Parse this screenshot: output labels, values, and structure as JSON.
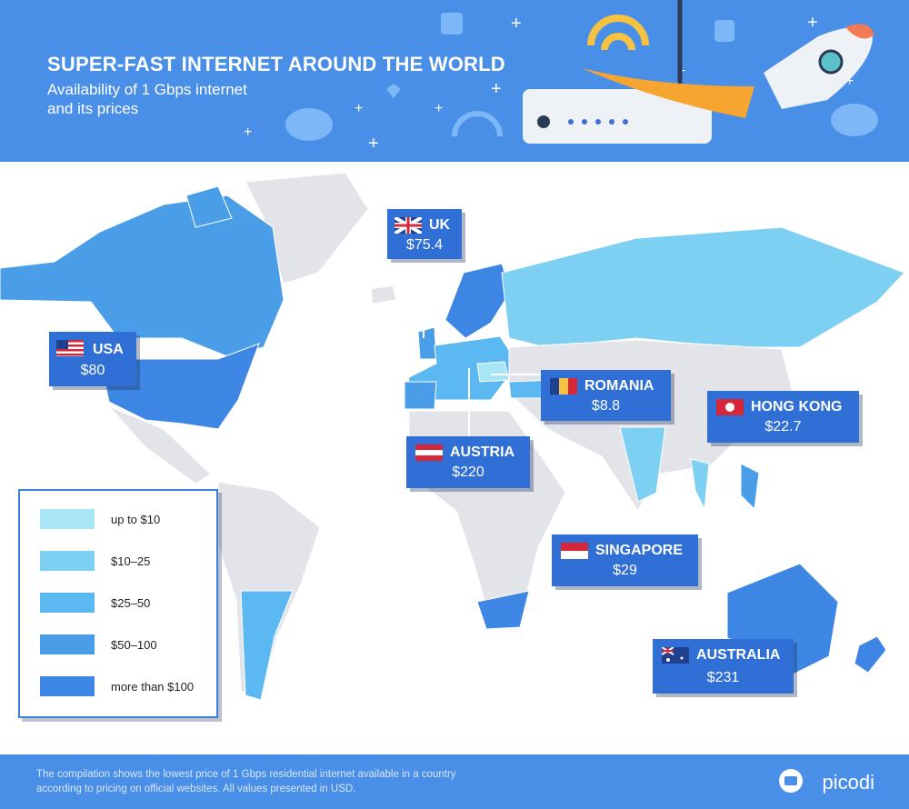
{
  "header": {
    "title": "SUPER-FAST INTERNET AROUND THE WORLD",
    "subtitle_lines": [
      "Availability of 1 Gbps internet",
      "and its prices"
    ]
  },
  "legend": {
    "items": [
      {
        "label": "up to $10",
        "color": "#a8e6f5"
      },
      {
        "label": "$10–25",
        "color": "#7ed0f3"
      },
      {
        "label": "$25–50",
        "color": "#5cb8f0"
      },
      {
        "label": "$50–100",
        "color": "#4a9ee8"
      },
      {
        "label": "more than $100",
        "color": "#3d86e3"
      }
    ]
  },
  "callouts": [
    {
      "country": "UK",
      "price": "$75.4"
    },
    {
      "country": "USA",
      "price": "$80"
    },
    {
      "country": "ROMANIA",
      "price": "$8.8"
    },
    {
      "country": "HONG KONG",
      "price": "$22.7"
    },
    {
      "country": "AUSTRIA",
      "price": "$220"
    },
    {
      "country": "SINGAPORE",
      "price": "$29"
    },
    {
      "country": "AUSTRALIA",
      "price": "$231"
    }
  ],
  "footer": {
    "note_lines": [
      "The compilation shows the lowest price of 1 Gbps residential internet available in a country",
      "according to pricing on official websites. All values presented in USD."
    ],
    "brand": "picodi"
  }
}
